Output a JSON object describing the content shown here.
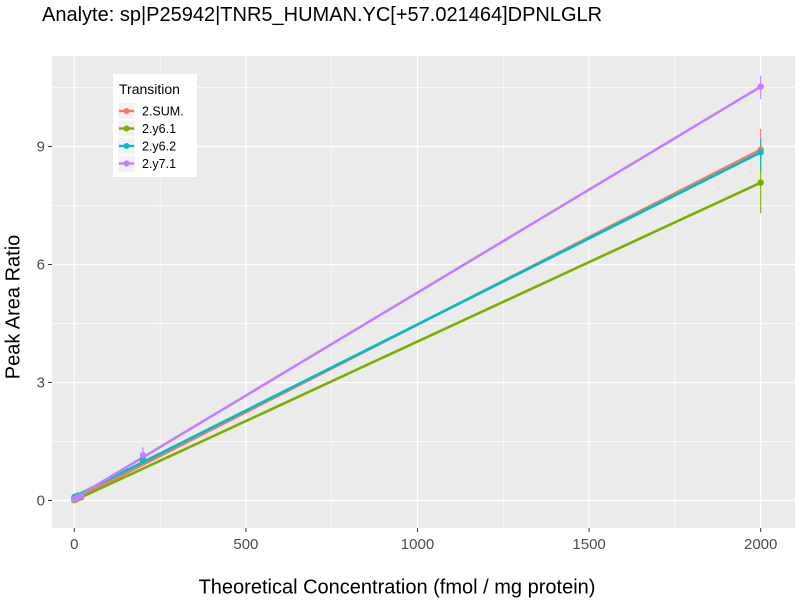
{
  "chart_data": {
    "type": "line",
    "title": "Analyte: sp|P25942|TNR5_HUMAN.YC[+57.021464]DPNLGLR",
    "xlabel": "Theoretical Concentration (fmol / mg protein)",
    "ylabel": "Peak Area Ratio",
    "xlim": [
      -65,
      2100
    ],
    "ylim": [
      -0.7,
      11.3
    ],
    "x_ticks": [
      0,
      500,
      1000,
      1500,
      2000
    ],
    "y_ticks": [
      0,
      3,
      6,
      9
    ],
    "grid": true,
    "legend": {
      "title": "Transition",
      "position": "top-left"
    },
    "series": [
      {
        "name": "2.SUM.",
        "color": "#F8766D",
        "line": [
          [
            0,
            0.02
          ],
          [
            2000,
            8.92
          ]
        ],
        "points": [
          {
            "x": 0,
            "y": 0.01
          },
          {
            "x": 2,
            "y": 0.02
          },
          {
            "x": 5,
            "y": 0.04
          },
          {
            "x": 10,
            "y": 0.06
          },
          {
            "x": 20,
            "y": 0.09
          },
          {
            "x": 200,
            "y": 1.0
          },
          {
            "x": 2000,
            "y": 8.92,
            "err": [
              8.35,
              9.45
            ]
          }
        ]
      },
      {
        "name": "2.y6.1",
        "color": "#7CAE00",
        "line": [
          [
            0,
            0.0
          ],
          [
            2000,
            8.08
          ]
        ],
        "points": [
          {
            "x": 0,
            "y": 0.01
          },
          {
            "x": 2,
            "y": 0.02
          },
          {
            "x": 5,
            "y": 0.03
          },
          {
            "x": 10,
            "y": 0.05
          },
          {
            "x": 20,
            "y": 0.08
          },
          {
            "x": 200,
            "y": 1.05
          },
          {
            "x": 2000,
            "y": 8.08,
            "err": [
              7.3,
              8.8
            ]
          }
        ]
      },
      {
        "name": "2.y6.2",
        "color": "#00BFC4",
        "line": [
          [
            0,
            0.1
          ],
          [
            2000,
            8.85
          ]
        ],
        "points": [
          {
            "x": 0,
            "y": 0.08
          },
          {
            "x": 2,
            "y": 0.09
          },
          {
            "x": 5,
            "y": 0.1
          },
          {
            "x": 10,
            "y": 0.12
          },
          {
            "x": 20,
            "y": 0.14
          },
          {
            "x": 200,
            "y": 1.02
          },
          {
            "x": 2000,
            "y": 8.85,
            "err": [
              8.4,
              9.2
            ]
          }
        ]
      },
      {
        "name": "2.y7.1",
        "color": "#C77CFF",
        "line": [
          [
            0,
            0.05
          ],
          [
            2000,
            10.52
          ]
        ],
        "points": [
          {
            "x": 0,
            "y": 0.03
          },
          {
            "x": 2,
            "y": 0.04
          },
          {
            "x": 5,
            "y": 0.06
          },
          {
            "x": 10,
            "y": 0.08
          },
          {
            "x": 20,
            "y": 0.12
          },
          {
            "x": 200,
            "y": 1.15,
            "err": [
              0.95,
              1.35
            ]
          },
          {
            "x": 2000,
            "y": 10.52,
            "err": [
              10.2,
              10.8
            ]
          }
        ]
      }
    ]
  }
}
